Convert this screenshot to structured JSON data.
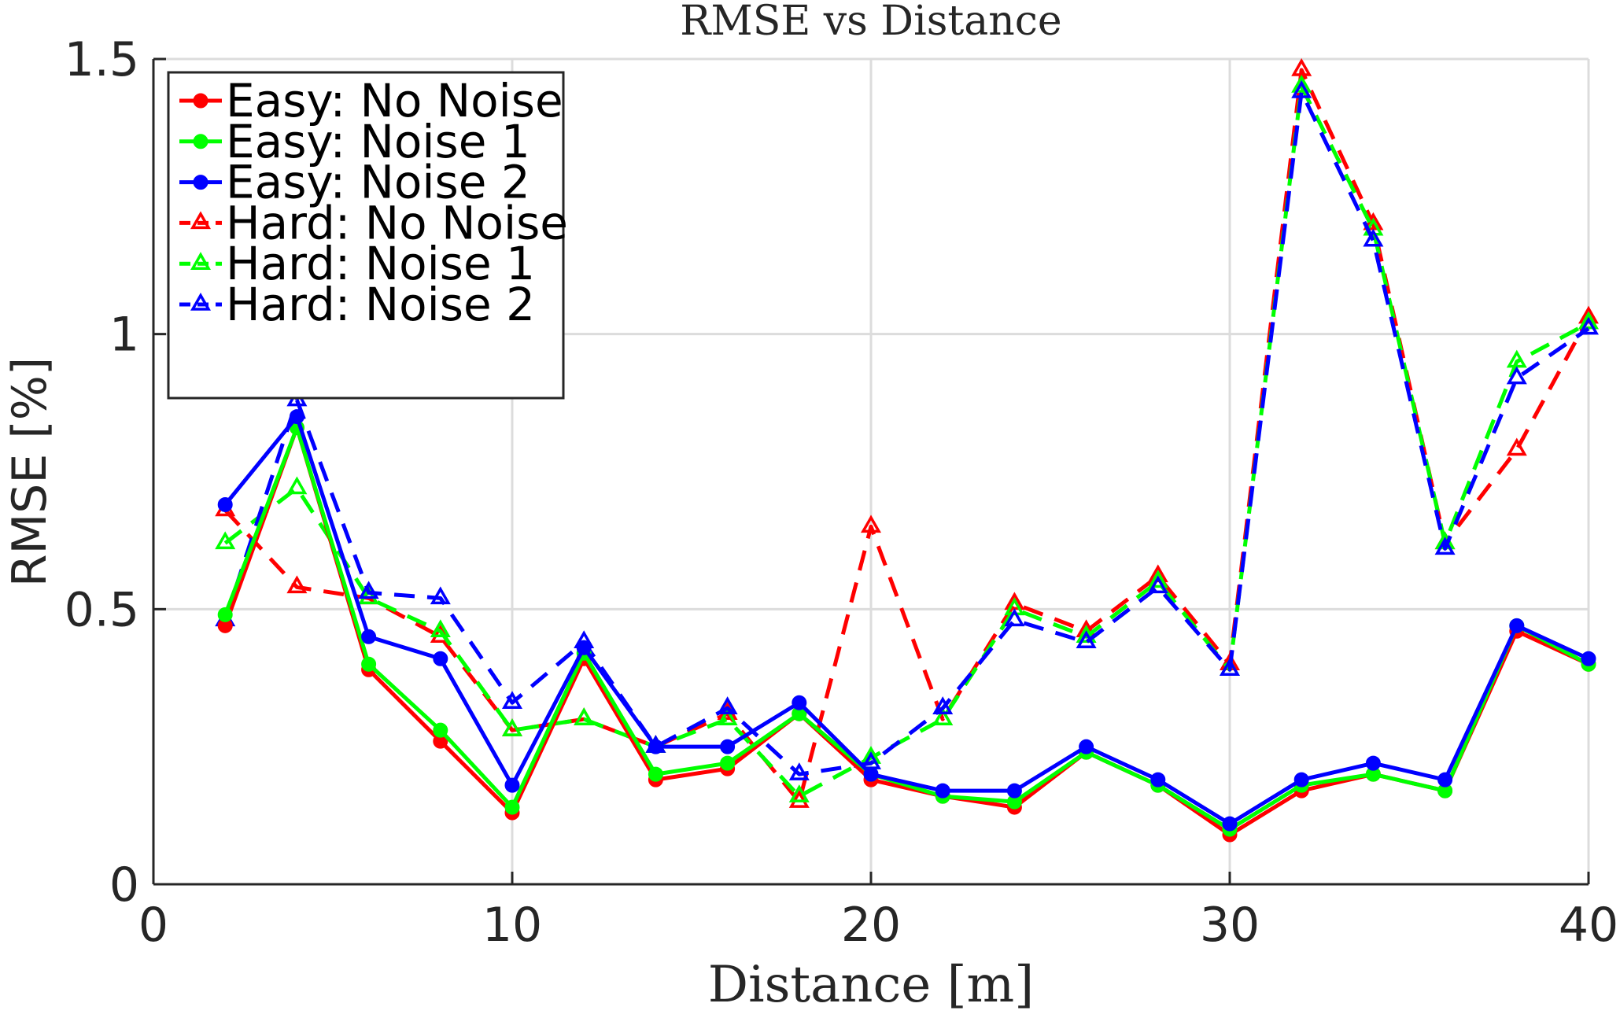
{
  "chart_data": {
    "type": "line",
    "title": "RMSE vs Distance",
    "xlabel": "Distance [m]",
    "ylabel": "RMSE [%]",
    "xlim": [
      0,
      40
    ],
    "ylim": [
      0,
      1.5
    ],
    "xticks": [
      "0",
      "10",
      "20",
      "30",
      "40"
    ],
    "yticks": [
      "0",
      "0.5",
      "1",
      "1.5"
    ],
    "grid": true,
    "legend_position": "top-left",
    "x": [
      2,
      4,
      6,
      8,
      10,
      12,
      14,
      16,
      18,
      20,
      22,
      24,
      26,
      28,
      30,
      32,
      34,
      36,
      38,
      40
    ],
    "series": [
      {
        "name": "Easy: No Noise",
        "color": "#ff0000",
        "line_style": "solid",
        "marker": "circle",
        "values": [
          0.47,
          0.83,
          0.39,
          0.26,
          0.13,
          0.41,
          0.19,
          0.21,
          0.31,
          0.19,
          0.16,
          0.14,
          0.24,
          0.18,
          0.09,
          0.17,
          0.2,
          0.17,
          0.46,
          0.4
        ]
      },
      {
        "name": "Easy: Noise 1",
        "color": "#00ff00",
        "line_style": "solid",
        "marker": "circle",
        "values": [
          0.49,
          0.83,
          0.4,
          0.28,
          0.14,
          0.42,
          0.2,
          0.22,
          0.31,
          0.2,
          0.16,
          0.15,
          0.24,
          0.18,
          0.1,
          0.18,
          0.2,
          0.17,
          0.47,
          0.4
        ]
      },
      {
        "name": "Easy: Noise 2",
        "color": "#0000ff",
        "line_style": "solid",
        "marker": "circle",
        "values": [
          0.69,
          0.85,
          0.45,
          0.41,
          0.18,
          0.43,
          0.25,
          0.25,
          0.33,
          0.2,
          0.17,
          0.17,
          0.25,
          0.19,
          0.11,
          0.19,
          0.22,
          0.19,
          0.47,
          0.41
        ]
      },
      {
        "name": "Hard: No Noise",
        "color": "#ff0000",
        "line_style": "dashed",
        "marker": "triangle",
        "values": [
          0.68,
          0.54,
          0.52,
          0.45,
          0.28,
          0.3,
          0.25,
          0.31,
          0.15,
          0.65,
          0.3,
          0.51,
          0.46,
          0.56,
          0.4,
          1.48,
          1.2,
          0.62,
          0.79,
          1.03
        ]
      },
      {
        "name": "Hard: Noise 1",
        "color": "#00ff00",
        "line_style": "dashed",
        "marker": "triangle",
        "values": [
          0.62,
          0.72,
          0.52,
          0.46,
          0.28,
          0.3,
          0.25,
          0.3,
          0.16,
          0.23,
          0.3,
          0.5,
          0.45,
          0.55,
          0.39,
          1.45,
          1.19,
          0.62,
          0.95,
          1.02
        ]
      },
      {
        "name": "Hard: Noise 2",
        "color": "#0000ff",
        "line_style": "dashed",
        "marker": "triangle",
        "values": [
          0.48,
          0.88,
          0.53,
          0.52,
          0.33,
          0.44,
          0.25,
          0.32,
          0.2,
          0.22,
          0.32,
          0.48,
          0.44,
          0.54,
          0.39,
          1.44,
          1.17,
          0.61,
          0.92,
          1.01
        ]
      }
    ]
  }
}
